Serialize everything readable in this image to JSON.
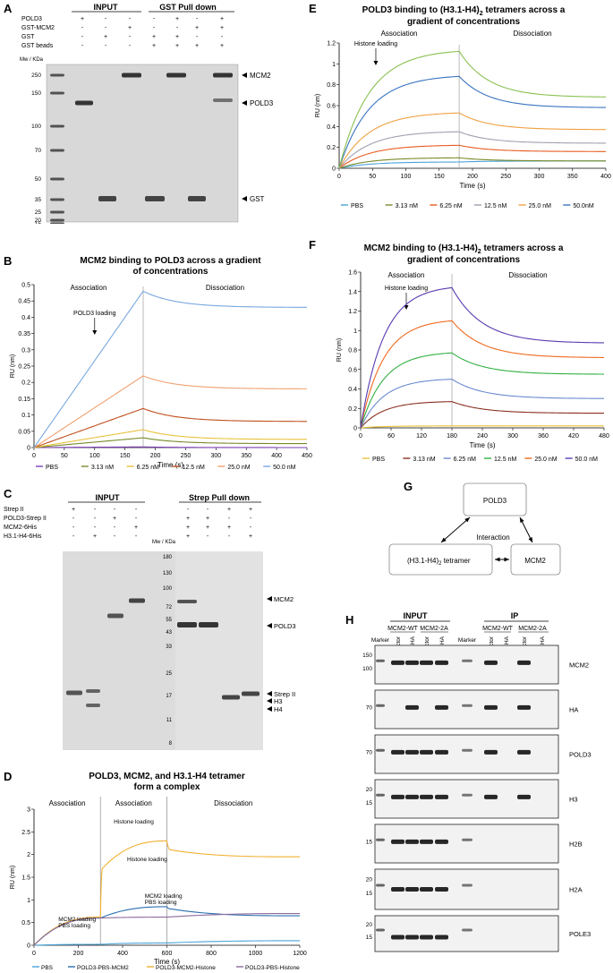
{
  "panels": {
    "A": {
      "letter": "A",
      "group_input": "INPUT",
      "group_pull": "GST Pull down",
      "rows": [
        {
          "label": "POLD3",
          "signs": [
            "+",
            "-",
            "-",
            "-",
            "+",
            "-",
            "+"
          ]
        },
        {
          "label": "GST-MCM2",
          "signs": [
            "-",
            "-",
            "+",
            "-",
            "-",
            "+",
            "+"
          ]
        },
        {
          "label": "GST",
          "signs": [
            "-",
            "+",
            "-",
            "+",
            "+",
            "-",
            "-"
          ]
        },
        {
          "label": "GST beads",
          "signs": [
            "-",
            "-",
            "-",
            "+",
            "+",
            "+",
            "+"
          ]
        }
      ],
      "mw_header": "Mw / KDa",
      "markers": [
        "250",
        "150",
        "100",
        "70",
        "50",
        "35",
        "25",
        "20",
        "15"
      ],
      "band_labels": [
        "MCM2",
        "POLD3",
        "GST"
      ]
    },
    "B": {
      "letter": "B",
      "title_l1": "MCM2 binding to POLD3 across a gradient",
      "title_l2": "of concentrations",
      "phase1": "Association",
      "phase2": "Dissociation",
      "annotation": "POLD3 loading",
      "ylabel": "RU (nm)",
      "xlabel": "Time (s)",
      "yticks": [
        "0.5",
        "0.45",
        "0.4",
        "0.35",
        "0.3",
        "0.25",
        "0.2",
        "0.15",
        "0.1",
        "0.05",
        "0"
      ],
      "xticks": [
        "0",
        "50",
        "100",
        "150",
        "200",
        "250",
        "300",
        "350",
        "400",
        "450"
      ],
      "legend": [
        "PBS",
        "3.13 nM",
        "6.25 nM",
        "12.5 nM",
        "25.0 nM",
        "50.0 nM"
      ]
    },
    "C": {
      "letter": "C",
      "group_input": "INPUT",
      "group_pull": "Strep Pull down",
      "rows": [
        {
          "label": "Strep II",
          "signs": [
            "+",
            "-",
            "-",
            "-",
            "-",
            "-",
            "+",
            "+"
          ]
        },
        {
          "label": "POLD3-Strep II",
          "signs": [
            "-",
            "-",
            "+",
            "-",
            "+",
            "+",
            "-",
            "-"
          ]
        },
        {
          "label": "MCM2-6His",
          "signs": [
            "-",
            "-",
            "-",
            "+",
            "+",
            "+",
            "+",
            "-"
          ]
        },
        {
          "label": "H3.1-H4-6His",
          "signs": [
            "-",
            "+",
            "-",
            "-",
            "+",
            "-",
            "-",
            "+"
          ]
        }
      ],
      "mw_header": "Mw / KDa",
      "markers": [
        "180",
        "130",
        "100",
        "72",
        "55",
        "43",
        "33",
        "25",
        "17",
        "11",
        "8"
      ],
      "band_labels": [
        "MCM2",
        "POLD3",
        "Strep  II",
        "H3",
        "H4"
      ]
    },
    "D": {
      "letter": "D",
      "title_l1": "POLD3, MCM2, and H3.1-H4 tetramer",
      "title_l2": "form a complex",
      "phases": [
        "Association",
        "Association",
        "Dissociation"
      ],
      "annotations": [
        "Histone loading",
        "Histone loading",
        "MCM2 loading",
        "PBS loading",
        "MCM2 loading",
        "PBS loading"
      ],
      "ylabel": "RU (nm)",
      "xlabel": "Time (s)",
      "yticks": [
        "3",
        "2.5",
        "2",
        "1.5",
        "1",
        "0.5",
        "0"
      ],
      "xticks": [
        "0",
        "200",
        "400",
        "600",
        "800",
        "1000",
        "1200"
      ],
      "legend": [
        "PBS",
        "POLD3-PBS-MCM2",
        "POLD3-MCM2-Histone",
        "POLD3-PBS-Histone"
      ]
    },
    "E": {
      "letter": "E",
      "title_l1": "POLD3 binding to (H3.1-H4)",
      "title_sub": "2",
      "title_l1b": " tetramers across a",
      "title_l2": "gradient of concentrations",
      "phase1": "Association",
      "phase2": "Dissociation",
      "annotation": "Histone loading",
      "ylabel": "RU (nm)",
      "xlabel": "Time (s)",
      "yticks": [
        "1.2",
        "1",
        "0.8",
        "0.6",
        "0.4",
        "0.2",
        "0"
      ],
      "xticks": [
        "0",
        "50",
        "100",
        "150",
        "200",
        "250",
        "300",
        "350",
        "400"
      ],
      "legend": [
        "PBS",
        "3.13 nM",
        "6.25 nM",
        "12.5 nM",
        "25.0 nM",
        "50.0nM"
      ]
    },
    "F": {
      "letter": "F",
      "title_l1": "MCM2 binding to (H3.1-H4)",
      "title_sub": "2",
      "title_l1b": " tetramers across a",
      "title_l2": "gradient of concentrations",
      "phase1": "Association",
      "phase2": "Dissociation",
      "annotation": "Histone loading",
      "ylabel": "RU (nm)",
      "xlabel": "Time (s)",
      "yticks": [
        "1.6",
        "1.4",
        "1.2",
        "1",
        "0.8",
        "0.6",
        "0.4",
        "0.2",
        "0"
      ],
      "xticks": [
        "0",
        "60",
        "120",
        "180",
        "240",
        "300",
        "360",
        "420",
        "480"
      ],
      "legend": [
        "PBS",
        "3.13 nM",
        "6.25 nM",
        "12.5 nM",
        "25.0 nM",
        "50.0 nM"
      ]
    },
    "G": {
      "letter": "G",
      "node_top": "POLD3",
      "node_left": "(H3.1-H4)",
      "node_left_sub": "2",
      "node_left_suffix": " tetramer",
      "node_right": "MCM2",
      "center": "Interaction"
    },
    "H": {
      "letter": "H",
      "group_input": "INPUT",
      "group_ip": "IP",
      "sub_wt": "MCM2-WT",
      "sub_2a": "MCM2-2A",
      "lanes": [
        "Marker",
        "Empty Vector",
        "POLD3-HA",
        "Empty Vector",
        "POLD3-HA",
        "Marker",
        "Empty Vector",
        "POLD3-HA",
        "Empty Vector",
        "POLD3-HA"
      ],
      "blots": [
        {
          "label": "MCM2",
          "markers": [
            "150",
            "100"
          ]
        },
        {
          "label": "HA",
          "markers": [
            "70"
          ]
        },
        {
          "label": "POLD3",
          "markers": [
            "70"
          ]
        },
        {
          "label": "H3",
          "markers": [
            "20",
            "15"
          ]
        },
        {
          "label": "H2B",
          "markers": [
            "15"
          ]
        },
        {
          "label": "H2A",
          "markers": [
            "20",
            "15"
          ]
        },
        {
          "label": "POLE3",
          "markers": [
            "20",
            "15"
          ]
        }
      ]
    }
  },
  "chart_data": [
    {
      "type": "line",
      "panel": "B",
      "title": "MCM2 binding to POLD3 across a gradient of concentrations",
      "xlabel": "Time (s)",
      "ylabel": "RU (nm)",
      "xlim": [
        0,
        450
      ],
      "ylim": [
        0,
        0.5
      ],
      "switch_time": 180,
      "series": [
        {
          "name": "PBS",
          "color": "#7b3fb5",
          "peak": 0.002,
          "end": 0.0
        },
        {
          "name": "3.13 nM",
          "color": "#7a8a2a",
          "peak": 0.03,
          "end": 0.012
        },
        {
          "name": "6.25 nM",
          "color": "#e8c23a",
          "peak": 0.055,
          "end": 0.025
        },
        {
          "name": "12.5 nM",
          "color": "#c0501e",
          "peak": 0.12,
          "end": 0.08
        },
        {
          "name": "25.0 nM",
          "color": "#f0a070",
          "peak": 0.22,
          "end": 0.18
        },
        {
          "name": "50.0 nM",
          "color": "#7aa8e0",
          "peak": 0.48,
          "end": 0.43
        }
      ]
    },
    {
      "type": "line",
      "panel": "D",
      "title": "POLD3, MCM2, and H3.1-H4 tetramer form a complex",
      "xlabel": "Time (s)",
      "ylabel": "RU (nm)",
      "xlim": [
        0,
        1200
      ],
      "ylim": [
        0,
        3
      ],
      "series": [
        {
          "name": "PBS",
          "color": "#4aa3d8",
          "points": [
            [
              0,
              0
            ],
            [
              300,
              0.02
            ],
            [
              600,
              0.05
            ],
            [
              1200,
              0.1
            ]
          ]
        },
        {
          "name": "POLD3-PBS-MCM2",
          "color": "#2a6fb0",
          "points": [
            [
              0,
              0
            ],
            [
              300,
              0.6
            ],
            [
              600,
              0.85
            ],
            [
              620,
              0.8
            ],
            [
              1200,
              0.65
            ]
          ]
        },
        {
          "name": "POLD3-MCM2-Histone",
          "color": "#f0b030",
          "points": [
            [
              0,
              0
            ],
            [
              300,
              0.62
            ],
            [
              310,
              1.7
            ],
            [
              600,
              2.3
            ],
            [
              620,
              2.1
            ],
            [
              1200,
              1.95
            ]
          ]
        },
        {
          "name": "POLD3-PBS-Histone",
          "color": "#8a6a9a",
          "points": [
            [
              0,
              0
            ],
            [
              300,
              0.6
            ],
            [
              600,
              0.62
            ],
            [
              1200,
              0.7
            ]
          ]
        }
      ]
    },
    {
      "type": "line",
      "panel": "E",
      "title": "POLD3 binding to (H3.1-H4)2 tetramers across a gradient of concentrations",
      "xlabel": "Time (s)",
      "ylabel": "RU (nm)",
      "xlim": [
        0,
        400
      ],
      "ylim": [
        0,
        1.2
      ],
      "switch_time": 180,
      "series": [
        {
          "name": "PBS",
          "color": "#4aa3d8",
          "peak": 0.06,
          "end": 0.07
        },
        {
          "name": "3.13 nM",
          "color": "#7a8a2a",
          "peak": 0.1,
          "end": 0.07
        },
        {
          "name": "6.25 nM",
          "color": "#e85a20",
          "peak": 0.22,
          "end": 0.16
        },
        {
          "name": "12.5 nM",
          "color": "#a0a0b0",
          "peak": 0.35,
          "end": 0.24
        },
        {
          "name": "25.0 nM",
          "color": "#f0a040",
          "peak": 0.53,
          "end": 0.37
        },
        {
          "name": "50.0nM",
          "color": "#3a74c0",
          "peak": 0.88,
          "end": 0.58
        },
        {
          "name": "",
          "color": "#8ac050",
          "peak": 1.12,
          "end": 0.68
        }
      ]
    },
    {
      "type": "line",
      "panel": "F",
      "title": "MCM2 binding to (H3.1-H4)2 tetramers across a gradient of concentrations",
      "xlabel": "Time (s)",
      "ylabel": "RU (nm)",
      "xlim": [
        0,
        480
      ],
      "ylim": [
        0,
        1.6
      ],
      "switch_time": 180,
      "series": [
        {
          "name": "PBS",
          "color": "#e8c23a",
          "peak": 0.02,
          "end": 0.02
        },
        {
          "name": "3.13 nM",
          "color": "#8a3020",
          "peak": 0.27,
          "end": 0.15
        },
        {
          "name": "6.25 nM",
          "color": "#6a8ad0",
          "peak": 0.5,
          "end": 0.3
        },
        {
          "name": "12.5 nM",
          "color": "#30b040",
          "peak": 0.77,
          "end": 0.55
        },
        {
          "name": "25.0 nM",
          "color": "#f06a20",
          "peak": 1.1,
          "end": 0.72
        },
        {
          "name": "50.0 nM",
          "color": "#5a3ab0",
          "peak": 1.44,
          "end": 0.87
        }
      ]
    }
  ]
}
